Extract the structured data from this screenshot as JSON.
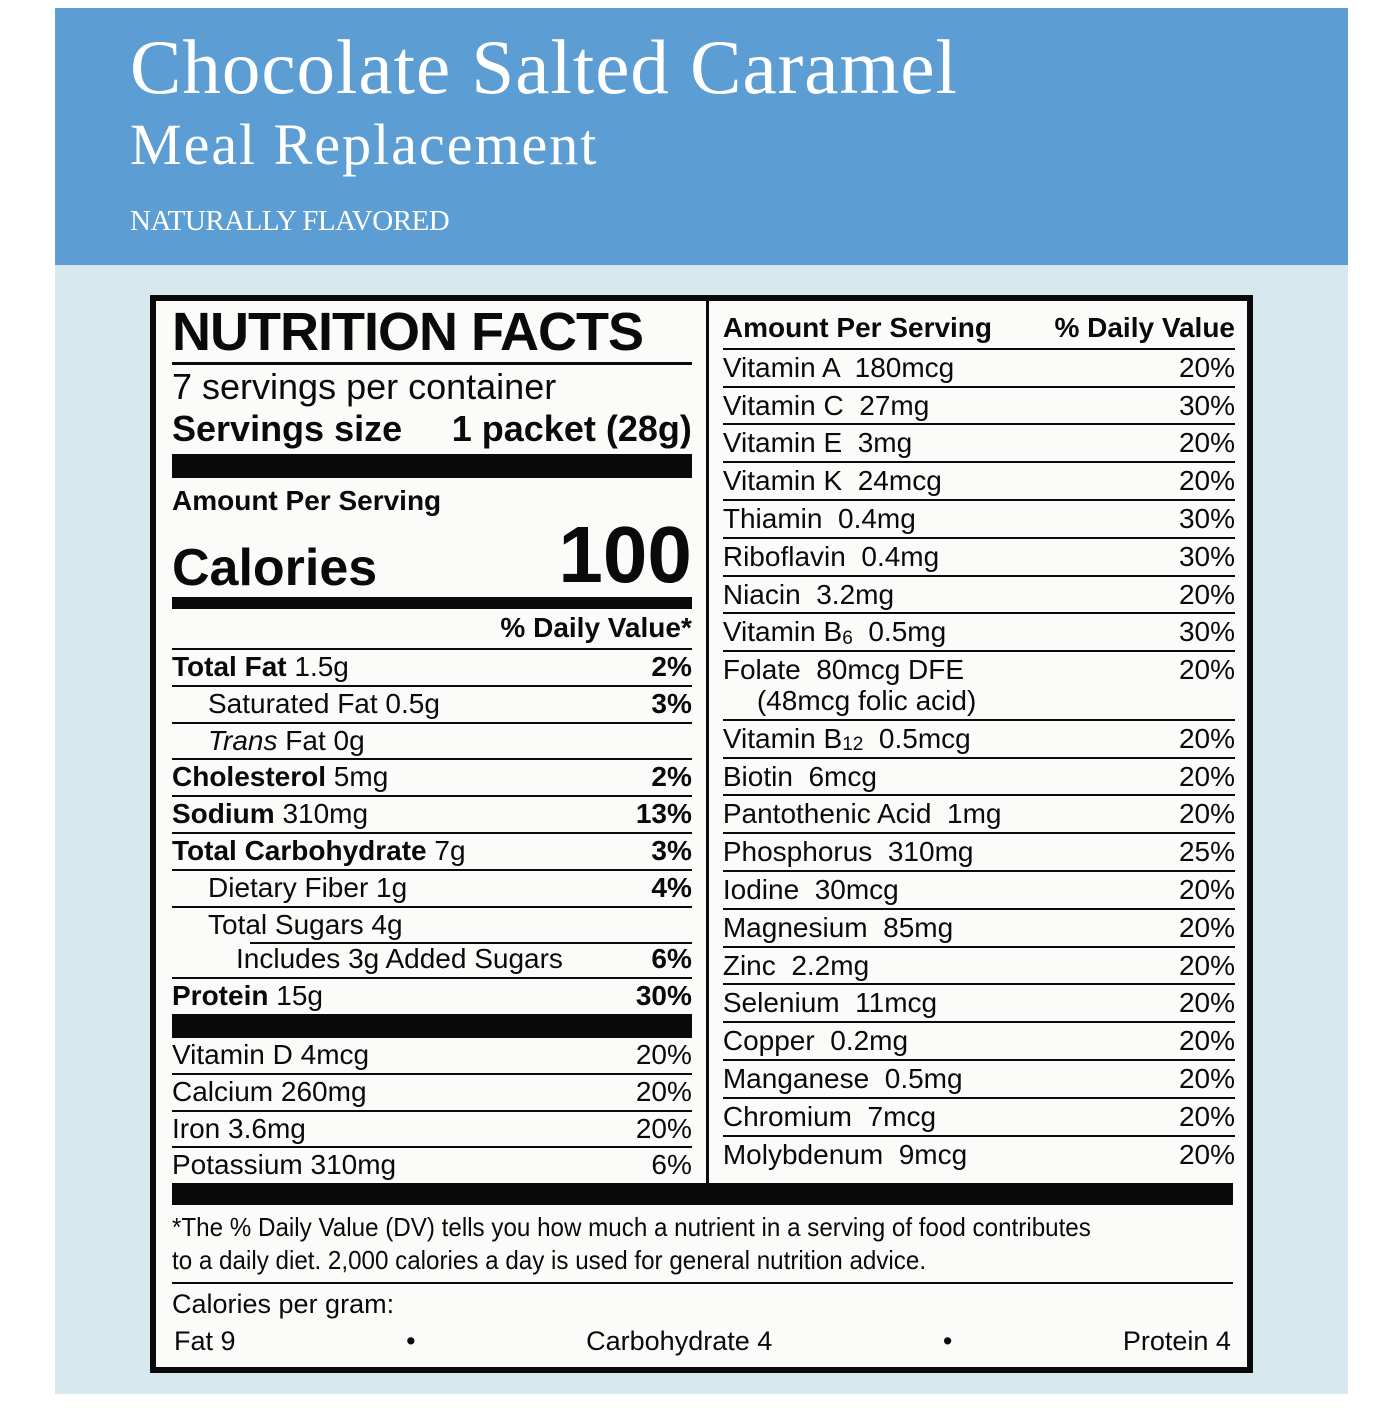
{
  "colors": {
    "header_blue": "#5c9ed3",
    "page_light_blue": "#d7e8ee",
    "panel_paper": "#fbfbf9",
    "ink": "#0a0a0a",
    "header_text": "#ffffff"
  },
  "header": {
    "title": "Chocolate Salted Caramel",
    "subtitle": "Meal Replacement",
    "flavor_note": "NATURALLY FLAVORED"
  },
  "label": {
    "title": "NUTRITION FACTS",
    "servings_per_container": "7 servings per container",
    "serving_size_label": "Servings size",
    "serving_size_value": "1 packet (28g)",
    "amount_per_serving": "Amount Per Serving",
    "calories_label": "Calories",
    "calories_value": "100",
    "daily_value_header": "% Daily Value*",
    "macro_rows": [
      {
        "parts": [
          {
            "t": "Total Fat",
            "b": true
          },
          {
            "t": " 1.5g"
          }
        ],
        "dv": "2%",
        "indent": 0
      },
      {
        "parts": [
          {
            "t": "Saturated Fat 0.5g"
          }
        ],
        "dv": "3%",
        "indent": 1
      },
      {
        "parts": [
          {
            "t": "Trans",
            "i": true
          },
          {
            "t": " Fat 0g"
          }
        ],
        "dv": "",
        "indent": 1
      },
      {
        "parts": [
          {
            "t": "Cholesterol",
            "b": true
          },
          {
            "t": " 5mg"
          }
        ],
        "dv": "2%",
        "indent": 0
      },
      {
        "parts": [
          {
            "t": "Sodium",
            "b": true
          },
          {
            "t": " 310mg"
          }
        ],
        "dv": "13%",
        "indent": 0
      },
      {
        "parts": [
          {
            "t": "Total Carbohydrate",
            "b": true
          },
          {
            "t": " 7g"
          }
        ],
        "dv": "3%",
        "indent": 0
      },
      {
        "parts": [
          {
            "t": "Dietary Fiber 1g"
          }
        ],
        "dv": "4%",
        "indent": 1
      },
      {
        "parts": [
          {
            "t": "Total Sugars 4g"
          }
        ],
        "dv": "",
        "indent": 1
      },
      {
        "parts": [
          {
            "t": "Includes 3g Added Sugars"
          }
        ],
        "dv": "6%",
        "indent": 2,
        "inset": true
      },
      {
        "parts": [
          {
            "t": "Protein",
            "b": true
          },
          {
            "t": " 15g"
          }
        ],
        "dv": "30%",
        "indent": 0
      }
    ],
    "mineral_rows": [
      {
        "parts": [
          {
            "t": "Vitamin D 4mcg"
          }
        ],
        "dv": "20%"
      },
      {
        "parts": [
          {
            "t": "Calcium 260mg"
          }
        ],
        "dv": "20%"
      },
      {
        "parts": [
          {
            "t": "Iron 3.6mg"
          }
        ],
        "dv": "20%"
      },
      {
        "parts": [
          {
            "t": "Potassium 310mg"
          }
        ],
        "dv": "6%"
      }
    ],
    "right_column": {
      "amount_header": "Amount Per Serving",
      "dv_header": "% Daily Value",
      "rows": [
        {
          "parts": [
            {
              "t": "Vitamin A  180mcg"
            }
          ],
          "dv": "20%"
        },
        {
          "parts": [
            {
              "t": "Vitamin C  27mg"
            }
          ],
          "dv": "30%"
        },
        {
          "parts": [
            {
              "t": "Vitamin E  3mg"
            }
          ],
          "dv": "20%"
        },
        {
          "parts": [
            {
              "t": "Vitamin K  24mcg"
            }
          ],
          "dv": "20%"
        },
        {
          "parts": [
            {
              "t": "Thiamin  0.4mg"
            }
          ],
          "dv": "30%"
        },
        {
          "parts": [
            {
              "t": "Riboflavin  0.4mg"
            }
          ],
          "dv": "30%"
        },
        {
          "parts": [
            {
              "t": "Niacin  3.2mg"
            }
          ],
          "dv": "20%"
        },
        {
          "parts": [
            {
              "t": "Vitamin B"
            },
            {
              "t": "6",
              "sub": true
            },
            {
              "t": "  0.5mg"
            }
          ],
          "dv": "30%"
        },
        {
          "parts": [
            {
              "t": "Folate  80mcg DFE"
            }
          ],
          "dv": "20%",
          "note": "(48mcg folic acid)"
        },
        {
          "parts": [
            {
              "t": "Vitamin B"
            },
            {
              "t": "12",
              "sub": true
            },
            {
              "t": "  0.5mcg"
            }
          ],
          "dv": "20%"
        },
        {
          "parts": [
            {
              "t": "Biotin  6mcg"
            }
          ],
          "dv": "20%"
        },
        {
          "parts": [
            {
              "t": "Pantothenic Acid  1mg"
            }
          ],
          "dv": "20%"
        },
        {
          "parts": [
            {
              "t": "Phosphorus  310mg"
            }
          ],
          "dv": "25%"
        },
        {
          "parts": [
            {
              "t": "Iodine  30mcg"
            }
          ],
          "dv": "20%"
        },
        {
          "parts": [
            {
              "t": "Magnesium  85mg"
            }
          ],
          "dv": "20%"
        },
        {
          "parts": [
            {
              "t": "Zinc  2.2mg"
            }
          ],
          "dv": "20%"
        },
        {
          "parts": [
            {
              "t": "Selenium  11mcg"
            }
          ],
          "dv": "20%"
        },
        {
          "parts": [
            {
              "t": "Copper  0.2mg"
            }
          ],
          "dv": "20%"
        },
        {
          "parts": [
            {
              "t": "Manganese  0.5mg"
            }
          ],
          "dv": "20%"
        },
        {
          "parts": [
            {
              "t": "Chromium  7mcg"
            }
          ],
          "dv": "20%"
        },
        {
          "parts": [
            {
              "t": "Molybdenum  9mcg"
            }
          ],
          "dv": "20%"
        }
      ]
    },
    "footnote_lines": [
      "*The % Daily Value (DV) tells you how much a nutrient in a serving of food contributes",
      "to a daily diet. 2,000 calories a day is used for general nutrition advice."
    ],
    "calories_per_gram": {
      "label": "Calories per gram:",
      "items": [
        "Fat 9",
        "Carbohydrate 4",
        "Protein 4"
      ],
      "separator": "•"
    }
  }
}
